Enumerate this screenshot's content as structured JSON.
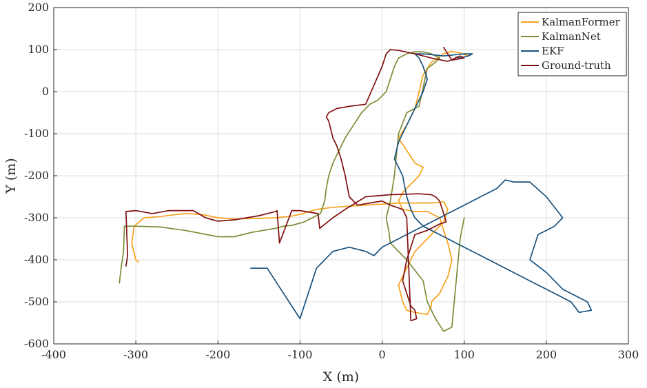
{
  "chart_data": {
    "type": "line",
    "xlabel": "X (m)",
    "ylabel": "Y (m)",
    "xlim": [
      -400,
      300
    ],
    "ylim": [
      -600,
      200
    ],
    "xticks": [
      -400,
      -300,
      -200,
      -100,
      0,
      100,
      200,
      300
    ],
    "yticks": [
      -600,
      -500,
      -400,
      -300,
      -200,
      -100,
      0,
      100,
      200
    ],
    "grid": true,
    "legend_position": "top-right",
    "series": [
      {
        "name": "KalmanFormer",
        "color": "#f7a11a",
        "x": [
          -297,
          -300,
          -305,
          -302,
          -290,
          -270,
          -250,
          -240,
          -220,
          -200,
          -180,
          -160,
          -130,
          -110,
          -100,
          -80,
          -60,
          -20,
          20,
          60,
          75,
          80,
          75,
          60,
          40,
          30,
          20,
          25,
          30,
          40,
          55,
          60,
          60,
          70,
          80,
          85,
          80,
          75,
          70,
          55,
          40,
          25,
          20,
          25,
          35,
          45,
          50,
          40,
          30,
          20,
          30,
          40,
          45,
          50,
          60,
          75,
          85,
          95,
          105
        ],
        "y": [
          -405,
          -400,
          -360,
          -320,
          -300,
          -297,
          -292,
          -290,
          -292,
          -300,
          -303,
          -302,
          -300,
          -296,
          -292,
          -280,
          -275,
          -270,
          -265,
          -265,
          -262,
          -280,
          -310,
          -340,
          -380,
          -420,
          -460,
          -500,
          -520,
          -525,
          -530,
          -510,
          -500,
          -480,
          -440,
          -400,
          -360,
          -330,
          -300,
          -285,
          -285,
          -280,
          -260,
          -240,
          -220,
          -200,
          -180,
          -170,
          -140,
          -110,
          -80,
          -40,
          0,
          40,
          70,
          90,
          96,
          92,
          85
        ]
      },
      {
        "name": "KalmanNet",
        "color": "#7a8c35",
        "x": [
          -320,
          -318,
          -315,
          -314,
          -300,
          -270,
          -240,
          -200,
          -180,
          -160,
          -130,
          -120,
          -110,
          -95,
          -85,
          -75,
          -70,
          -68,
          -65,
          -60,
          -55,
          -50,
          -45,
          -35,
          -25,
          -15,
          -5,
          5,
          10,
          15,
          20,
          30,
          40,
          50,
          60,
          70,
          65,
          55,
          45,
          30,
          20,
          15,
          10,
          5,
          8,
          10,
          30,
          50,
          55,
          65,
          75,
          85,
          95,
          100
        ],
        "y": [
          -455,
          -420,
          -380,
          -320,
          -320,
          -322,
          -330,
          -345,
          -345,
          -335,
          -325,
          -320,
          -318,
          -310,
          -300,
          -290,
          -260,
          -230,
          -200,
          -170,
          -150,
          -130,
          -110,
          -80,
          -50,
          -30,
          -20,
          0,
          30,
          60,
          80,
          90,
          95,
          95,
          90,
          80,
          70,
          55,
          -35,
          -50,
          -100,
          -200,
          -260,
          -300,
          -330,
          -360,
          -400,
          -450,
          -500,
          -540,
          -570,
          -560,
          -350,
          -300
        ]
      },
      {
        "name": "EKF",
        "color": "#16517f",
        "x": [
          -160,
          -140,
          -120,
          -110,
          -100,
          -80,
          -60,
          -40,
          -20,
          -10,
          0,
          20,
          40,
          60,
          80,
          100,
          120,
          140,
          150,
          160,
          180,
          200,
          220,
          210,
          190,
          180,
          200,
          220,
          240,
          250,
          255,
          240,
          230,
          210,
          190,
          170,
          150,
          130,
          110,
          90,
          70,
          50,
          40,
          35,
          30,
          25,
          15,
          20,
          30,
          40,
          50,
          55,
          50,
          45,
          40,
          50,
          60,
          70,
          75,
          80,
          90,
          100,
          110,
          105,
          95,
          90
        ],
        "y": [
          -420,
          -420,
          -480,
          -510,
          -540,
          -420,
          -380,
          -370,
          -380,
          -390,
          -370,
          -350,
          -330,
          -310,
          -290,
          -270,
          -250,
          -230,
          -210,
          -215,
          -215,
          -250,
          -300,
          -320,
          -340,
          -400,
          -430,
          -470,
          -490,
          -500,
          -520,
          -525,
          -500,
          -480,
          -460,
          -440,
          -420,
          -400,
          -380,
          -360,
          -340,
          -320,
          -300,
          -280,
          -250,
          -200,
          -160,
          -120,
          -80,
          -40,
          0,
          30,
          60,
          80,
          90,
          90,
          88,
          86,
          85,
          86,
          88,
          90,
          90,
          85,
          80,
          82
        ]
      },
      {
        "name": "Ground-truth",
        "color": "#7f0f0f",
        "x": [
          -312,
          -310,
          -312,
          -300,
          -280,
          -260,
          -230,
          -215,
          -200,
          -180,
          -150,
          -130,
          -128,
          -125,
          -110,
          -100,
          -78,
          -76,
          -60,
          -45,
          -20,
          10,
          45,
          60,
          65,
          70,
          75,
          78,
          70,
          55,
          40,
          30,
          25,
          35,
          40,
          42,
          35,
          30,
          25,
          10,
          0,
          -15,
          -30,
          -40,
          -45,
          -50,
          -55,
          -60,
          -65,
          -68,
          -65,
          -55,
          -40,
          -20,
          0,
          5,
          10,
          20,
          40,
          60,
          80,
          95,
          100,
          85,
          75
        ],
        "y": [
          -415,
          -390,
          -285,
          -283,
          -290,
          -283,
          -283,
          -300,
          -308,
          -305,
          -295,
          -285,
          -283,
          -360,
          -283,
          -283,
          -290,
          -325,
          -300,
          -280,
          -250,
          -245,
          -243,
          -245,
          -250,
          -260,
          -290,
          -310,
          -315,
          -330,
          -340,
          -400,
          -450,
          -510,
          -520,
          -540,
          -545,
          -300,
          -280,
          -270,
          -260,
          -265,
          -270,
          -250,
          -200,
          -160,
          -130,
          -110,
          -70,
          -60,
          -50,
          -40,
          -35,
          -30,
          60,
          90,
          100,
          98,
          90,
          80,
          72,
          85,
          80,
          75,
          105
        ]
      }
    ]
  }
}
